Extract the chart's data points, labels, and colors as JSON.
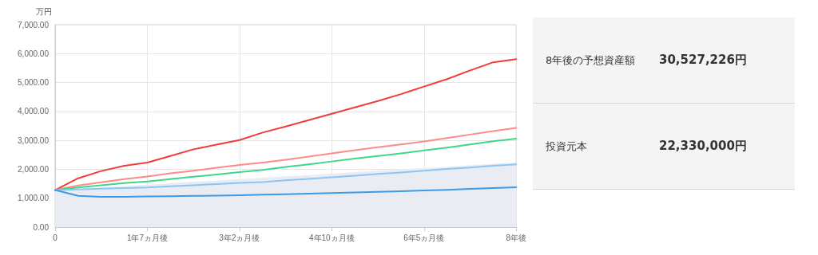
{
  "chart_data": [
    {
      "type": "line",
      "ylabel": "万円",
      "categories": [
        "0",
        null,
        null,
        null,
        "1年7ヵ月後",
        null,
        null,
        null,
        "3年2ヵ月後",
        null,
        null,
        null,
        "4年10ヵ月後",
        null,
        null,
        null,
        "6年5ヵ月後",
        null,
        null,
        null,
        "8年後"
      ],
      "series": [
        {
          "type": "area",
          "color": "#e9edf3",
          "values": [
            1280,
            1330,
            1380,
            1420,
            1470,
            1520,
            1570,
            1610,
            1660,
            1710,
            1760,
            1800,
            1850,
            1900,
            1950,
            2000,
            2040,
            2090,
            2140,
            2190,
            2230
          ]
        },
        {
          "color": "#f03c3c",
          "values": [
            1280,
            1690,
            1940,
            2120,
            2230,
            2460,
            2690,
            2850,
            3010,
            3270,
            3480,
            3700,
            3920,
            4140,
            4360,
            4600,
            4860,
            5120,
            5420,
            5700,
            5810
          ]
        },
        {
          "color": "#ff8a8a",
          "values": [
            1280,
            1440,
            1550,
            1660,
            1750,
            1860,
            1950,
            2050,
            2150,
            2230,
            2330,
            2440,
            2550,
            2660,
            2760,
            2860,
            2960,
            3080,
            3200,
            3320,
            3430
          ]
        },
        {
          "color": "#3dd68c",
          "values": [
            1280,
            1370,
            1450,
            1520,
            1580,
            1660,
            1740,
            1820,
            1900,
            1980,
            2080,
            2170,
            2270,
            2370,
            2460,
            2550,
            2650,
            2750,
            2860,
            2970,
            3060
          ]
        },
        {
          "color": "#8cc4f5",
          "values": [
            1280,
            1300,
            1330,
            1350,
            1370,
            1410,
            1450,
            1490,
            1530,
            1560,
            1620,
            1670,
            1720,
            1780,
            1840,
            1890,
            1950,
            2010,
            2060,
            2120,
            2170
          ]
        },
        {
          "color": "#3c9be6",
          "values": [
            1280,
            1080,
            1050,
            1050,
            1060,
            1070,
            1080,
            1090,
            1100,
            1120,
            1140,
            1160,
            1180,
            1200,
            1220,
            1240,
            1270,
            1290,
            1320,
            1350,
            1380
          ]
        }
      ],
      "ylim": [
        0,
        7000
      ],
      "yticks": [
        {
          "value": 0,
          "label": "0.00"
        },
        {
          "value": 1000,
          "label": "1,000.00"
        },
        {
          "value": 2000,
          "label": "2,000.00"
        },
        {
          "value": 3000,
          "label": "3,000.00"
        },
        {
          "value": 4000,
          "label": "4,000.00"
        },
        {
          "value": 5000,
          "label": "5,000.00"
        },
        {
          "value": 6000,
          "label": "6,000.00"
        },
        {
          "value": 7000,
          "label": "7,000.00"
        }
      ],
      "grid": true,
      "marker": "none",
      "line_style": "solid"
    },
    {
      "type": "other",
      "annotations": [
        "8年後の予想資産額",
        "30,527,226円",
        "投資元本",
        "22,330,000円"
      ]
    }
  ]
}
